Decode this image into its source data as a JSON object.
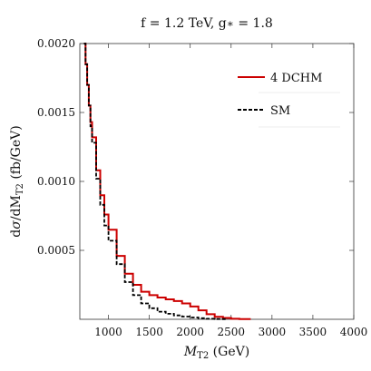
{
  "chart_data": {
    "type": "line",
    "title": "f = 1.2 TeV, g* = 1.8",
    "xlabel": "M_T2 (GeV)",
    "ylabel": "dσ/dM_T2 (fb/GeV)",
    "xlim": [
      650,
      4000
    ],
    "ylim": [
      0,
      0.002
    ],
    "x_ticks": [
      1000,
      1500,
      2000,
      2500,
      3000,
      3500,
      4000
    ],
    "y_ticks": [
      0.0005,
      0.001,
      0.0015,
      0.002
    ],
    "x_tick_labels": [
      "1000",
      "1500",
      "2000",
      "2500",
      "3000",
      "3500",
      "4000"
    ],
    "y_tick_labels": [
      "0.0005",
      "0.0010",
      "0.0015",
      "0.0020"
    ],
    "grid": false,
    "legend_position": "top-right",
    "series": [
      {
        "name": "4 DCHM",
        "color": "#cc0000",
        "style": "solid",
        "x": [
          700,
          720,
          740,
          760,
          780,
          800,
          850,
          900,
          950,
          1000,
          1100,
          1200,
          1300,
          1400,
          1500,
          1600,
          1700,
          1800,
          1900,
          2000,
          2100,
          2200,
          2300,
          2400,
          2500,
          2600,
          2700
        ],
        "y": [
          0.002,
          0.00185,
          0.0017,
          0.00155,
          0.00143,
          0.00132,
          0.00108,
          0.0009,
          0.00076,
          0.00065,
          0.00046,
          0.00033,
          0.00025,
          0.0002,
          0.000175,
          0.000158,
          0.000145,
          0.000132,
          0.000115,
          9.25e-05,
          6.5e-05,
          3.7e-05,
          1.75e-05,
          1e-05,
          4e-06,
          2e-06,
          1e-06
        ]
      },
      {
        "name": "SM",
        "color": "#000000",
        "style": "dashed",
        "x": [
          700,
          720,
          740,
          760,
          780,
          800,
          850,
          900,
          950,
          1000,
          1100,
          1200,
          1300,
          1400,
          1500,
          1600,
          1700,
          1800,
          1900,
          2000,
          2100,
          2200,
          2300,
          2400
        ],
        "y": [
          0.002,
          0.00185,
          0.0017,
          0.00155,
          0.0014,
          0.00128,
          0.00102,
          0.00083,
          0.00068,
          0.00057,
          0.0004,
          0.00027,
          0.000175,
          0.000115,
          8e-05,
          5.5e-05,
          4e-05,
          2.8e-05,
          2e-05,
          1.3e-05,
          8e-06,
          4e-06,
          2e-06,
          1e-06
        ]
      }
    ]
  }
}
